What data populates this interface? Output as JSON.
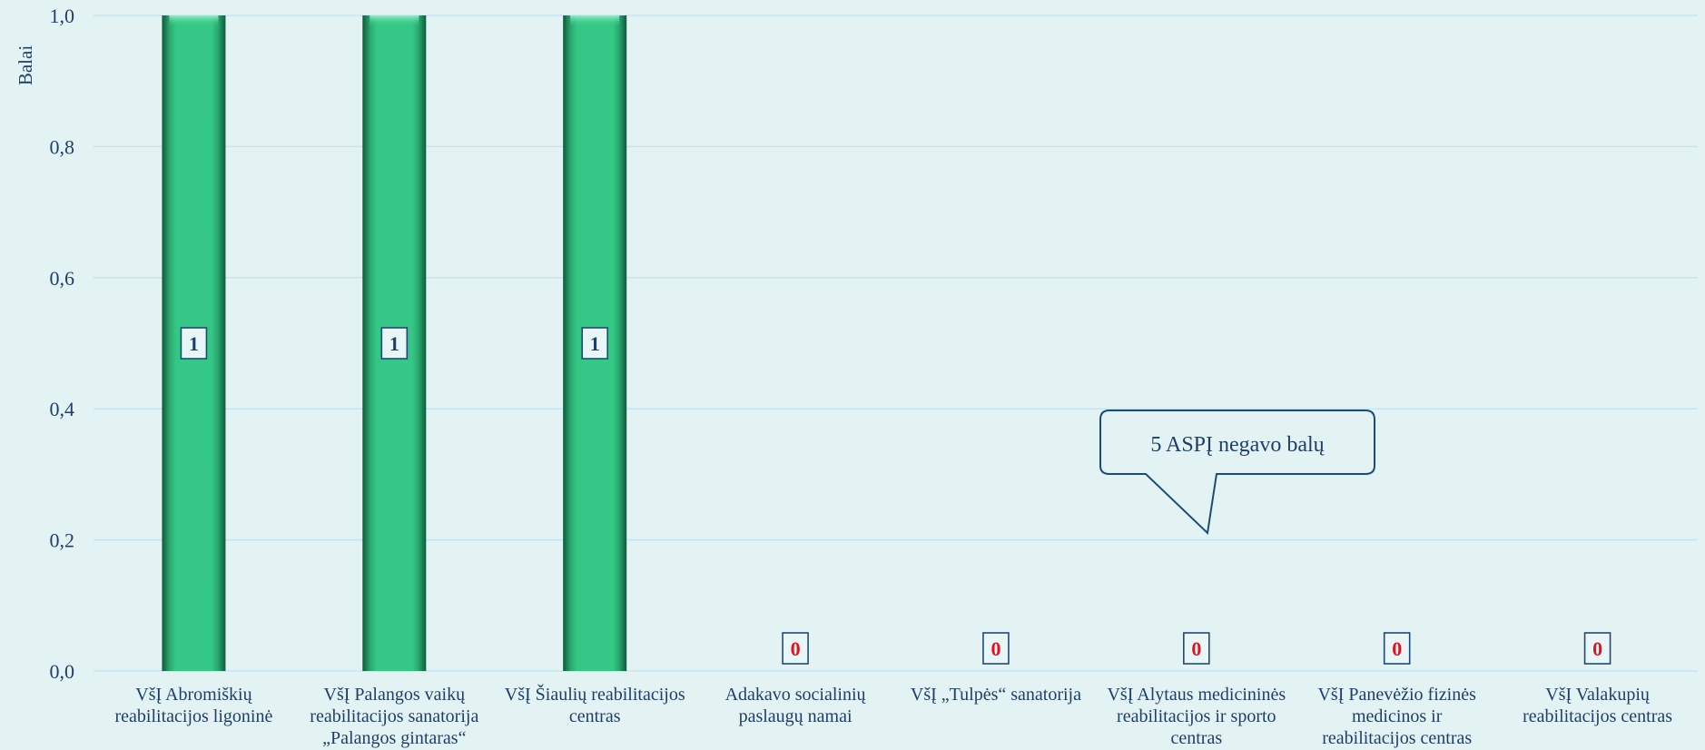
{
  "chart_data": {
    "type": "bar",
    "ylabel": "Balai",
    "ylim": [
      0,
      1
    ],
    "yticks": [
      "0,0",
      "0,2",
      "0,4",
      "0,6",
      "0,8",
      "1,0"
    ],
    "ytick_values": [
      0,
      0.2,
      0.4,
      0.6,
      0.8,
      1.0
    ],
    "grid": true,
    "categories": [
      [
        "VšĮ Abromiškių",
        "reabilitacijos ligoninė"
      ],
      [
        "VšĮ Palangos vaikų",
        "reabilitacijos sanatorija",
        "„Palangos gintaras“"
      ],
      [
        "VšĮ Šiaulių reabilitacijos",
        "centras"
      ],
      [
        "Adakavo socialinių",
        "paslaugų namai"
      ],
      [
        "VšĮ „Tulpės“ sanatorija"
      ],
      [
        "VšĮ Alytaus medicininės",
        "reabilitacijos ir sporto",
        "centras"
      ],
      [
        "VšĮ Panevėžio fizinės",
        "medicinos ir",
        "reabilitacijos centras"
      ],
      [
        "VšĮ Valakupių",
        "reabilitacijos centras"
      ]
    ],
    "values": [
      1,
      1,
      1,
      0,
      0,
      0,
      0,
      0
    ],
    "data_labels": [
      "1",
      "1",
      "1",
      "0",
      "0",
      "0",
      "0",
      "0"
    ],
    "annotation": "5 ASPĮ negavo balų"
  },
  "colors": {
    "background": "#e3f3f4",
    "bar_fill": "#35c785",
    "grid": "#c4e4f2",
    "text": "#1f3f6b",
    "label_positive": "#1f3f6b",
    "label_zero": "#e0141e",
    "label_box_border": "#1f4a78"
  }
}
